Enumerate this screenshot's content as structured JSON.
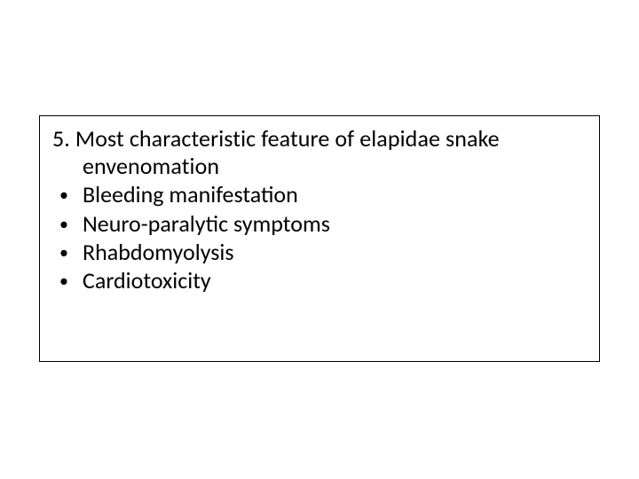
{
  "slide": {
    "background_color": "#ffffff",
    "box_border_color": "#000000",
    "text_color": "#000000",
    "font_family": "Calibri",
    "font_size_pt": 26,
    "question_number": "5.",
    "question_line1": "5. Most characteristic feature of elapidae snake",
    "question_line2": "envenomation",
    "bullets": [
      "Bleeding manifestation",
      "Neuro-paralytic symptoms",
      "Rhabdomyolysis",
      "Cardiotoxicity"
    ]
  }
}
